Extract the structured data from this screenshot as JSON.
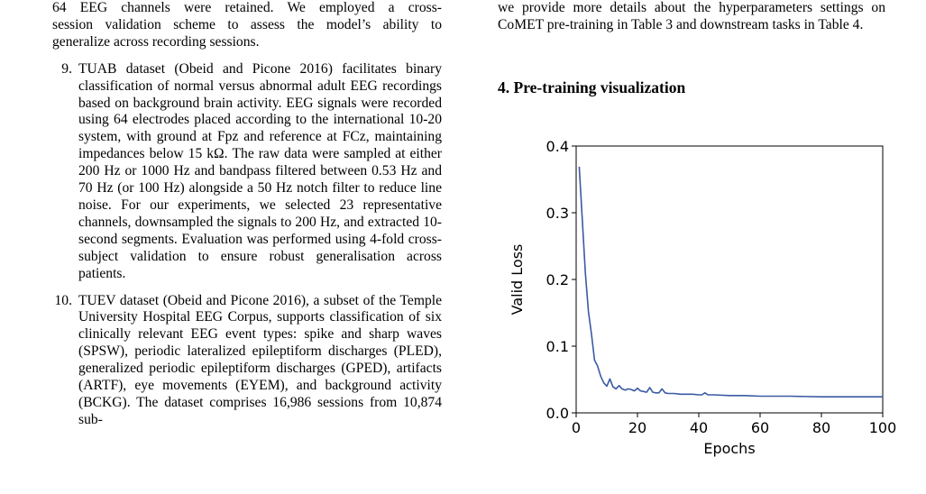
{
  "left_column": {
    "intro_lines": [
      "64 EEG channels were retained. We employed a cross-",
      "session validation scheme to assess the model’s ability to",
      "generalize across recording sessions."
    ],
    "items": [
      {
        "number": "9.",
        "text": "TUAB dataset (Obeid and Picone 2016) facilitates binary classification of normal versus abnormal adult EEG recordings based on background brain activity. EEG signals were recorded using 64 electrodes placed according to the international 10-20 system, with ground at Fpz and reference at FCz, maintaining impedances below 15 kΩ. The raw data were sampled at either 200 Hz or 1000 Hz and bandpass filtered between 0.53 Hz and 70 Hz (or 100 Hz) alongside a 50 Hz notch filter to reduce line noise. For our experiments, we selected 23 representative channels, downsampled the signals to 200 Hz, and extracted 10-second segments. Evaluation was performed using 4-fold cross-subject validation to ensure robust generalisation across patients."
      },
      {
        "number": "10.",
        "text": "TUEV dataset (Obeid and Picone 2016), a subset of the Temple University Hospital EEG Corpus, supports classification of six clinically relevant EEG event types: spike and sharp waves (SPSW), periodic lateralized epileptiform discharges (PLED), generalized periodic epileptiform discharges (GPED), artifacts (ARTF), eye movements (EYEM), and background activity (BCKG). The dataset comprises 16,986 sessions from 10,874 sub-"
      }
    ]
  },
  "right_column": {
    "intro_text": "we provide more details about the hyperparameters settings on CoMET pre-training in Table 3 and downstream tasks in Table 4.",
    "section_heading": "4. Pre-training visualization"
  },
  "chart_data": {
    "type": "line",
    "xlabel": "Epochs",
    "ylabel": "Valid Loss",
    "xlim": [
      0,
      100
    ],
    "ylim": [
      0,
      0.4
    ],
    "xticks": [
      "0",
      "20",
      "40",
      "60",
      "80",
      "100"
    ],
    "yticks": [
      "0.0",
      "0.1",
      "0.2",
      "0.3",
      "0.4"
    ],
    "grid": false,
    "line_color": "#3a5aa3",
    "series": [
      {
        "x": [
          1,
          2,
          3,
          4,
          5,
          6,
          7,
          8,
          9,
          10,
          11,
          12,
          13,
          14,
          15,
          16,
          17,
          18,
          19,
          20,
          21,
          22,
          23,
          24,
          25,
          26,
          27,
          28,
          29,
          30,
          32,
          34,
          36,
          38,
          40,
          41,
          42,
          43,
          45,
          50,
          55,
          60,
          70,
          80,
          90,
          100
        ],
        "y": [
          0.369,
          0.29,
          0.21,
          0.152,
          0.118,
          0.079,
          0.07,
          0.055,
          0.045,
          0.04,
          0.051,
          0.039,
          0.036,
          0.041,
          0.036,
          0.034,
          0.036,
          0.035,
          0.033,
          0.037,
          0.033,
          0.032,
          0.031,
          0.038,
          0.031,
          0.03,
          0.03,
          0.036,
          0.03,
          0.029,
          0.029,
          0.028,
          0.028,
          0.028,
          0.027,
          0.027,
          0.03,
          0.027,
          0.027,
          0.026,
          0.026,
          0.025,
          0.025,
          0.024,
          0.024,
          0.024
        ]
      }
    ]
  }
}
